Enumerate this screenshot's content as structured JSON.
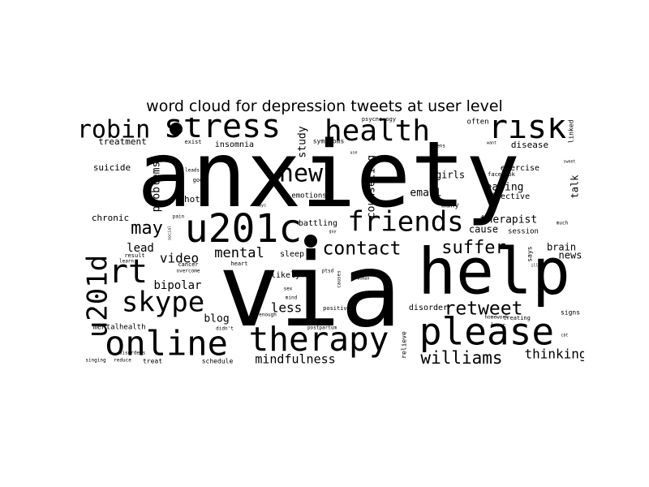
{
  "chart_data": {
    "type": "wordcloud",
    "title": "word cloud for depression tweets at user level",
    "words": [
      {
        "text": "anxiety",
        "weight": 100
      },
      {
        "text": "via",
        "weight": 96
      },
      {
        "text": "help",
        "weight": 66
      },
      {
        "text": "u201c",
        "weight": 46
      },
      {
        "text": "please",
        "weight": 44
      },
      {
        "text": "online",
        "weight": 39
      },
      {
        "text": "therapy",
        "weight": 39
      },
      {
        "text": "rt",
        "weight": 36
      },
      {
        "text": "stress",
        "weight": 34
      },
      {
        "text": "risk",
        "weight": 33
      },
      {
        "text": "health",
        "weight": 32
      },
      {
        "text": "friends",
        "weight": 32
      },
      {
        "text": "u201d",
        "weight": 31
      },
      {
        "text": "skype",
        "weight": 30
      },
      {
        "text": "robin",
        "weight": 27
      },
      {
        "text": "new",
        "weight": 26
      },
      {
        "text": "contact",
        "weight": 22
      },
      {
        "text": "retweet",
        "weight": 21
      },
      {
        "text": "suffer",
        "weight": 20
      },
      {
        "text": "williams",
        "weight": 20
      },
      {
        "text": "may",
        "weight": 19
      },
      {
        "text": "thinking",
        "weight": 16
      },
      {
        "text": "mental",
        "weight": 16
      },
      {
        "text": "video",
        "weight": 15
      },
      {
        "text": "mindfulness",
        "weight": 14
      },
      {
        "text": "less",
        "weight": 14
      },
      {
        "text": "lead",
        "weight": 13
      },
      {
        "text": "bipolar",
        "weight": 13
      },
      {
        "text": "blog",
        "weight": 12
      },
      {
        "text": "problems",
        "weight": 12
      },
      {
        "text": "counseling",
        "weight": 12
      },
      {
        "text": "email",
        "weight": 12
      },
      {
        "text": "eating",
        "weight": 12
      },
      {
        "text": "therapist",
        "weight": 12
      },
      {
        "text": "study",
        "weight": 12
      },
      {
        "text": "news",
        "weight": 11
      },
      {
        "text": "brain",
        "weight": 11
      },
      {
        "text": "talk",
        "weight": 11
      },
      {
        "text": "girls",
        "weight": 11
      },
      {
        "text": "cause",
        "weight": 11
      },
      {
        "text": "suicide",
        "weight": 10
      },
      {
        "text": "treatment",
        "weight": 10
      },
      {
        "text": "chronic",
        "weight": 10
      },
      {
        "text": "photo",
        "weight": 10
      },
      {
        "text": "battling",
        "weight": 10
      },
      {
        "text": "likely",
        "weight": 10
      },
      {
        "text": "sleep",
        "weight": 10
      },
      {
        "text": "disorder",
        "weight": 10
      },
      {
        "text": "exercise",
        "weight": 10
      },
      {
        "text": "effective",
        "weight": 10
      },
      {
        "text": "insomnia",
        "weight": 10
      },
      {
        "text": "disease",
        "weight": 10
      },
      {
        "text": "emotions",
        "weight": 9
      },
      {
        "text": "mentalhealth",
        "weight": 9
      },
      {
        "text": "often",
        "weight": 9
      },
      {
        "text": "many",
        "weight": 9
      },
      {
        "text": "session",
        "weight": 9
      },
      {
        "text": "signs",
        "weight": 8
      },
      {
        "text": "linked",
        "weight": 8
      },
      {
        "text": "symptoms",
        "weight": 8
      },
      {
        "text": "schedule",
        "weight": 8
      },
      {
        "text": "treat",
        "weight": 8
      },
      {
        "text": "relieve",
        "weight": 8
      },
      {
        "text": "says",
        "weight": 8
      },
      {
        "text": "exist",
        "weight": 8
      },
      {
        "text": "facebook",
        "weight": 7
      },
      {
        "text": "psychology",
        "weight": 7
      },
      {
        "text": "heart",
        "weight": 7
      },
      {
        "text": "positive",
        "weight": 7
      },
      {
        "text": "good",
        "weight": 7
      },
      {
        "text": "leads",
        "weight": 7
      },
      {
        "text": "result",
        "weight": 7
      },
      {
        "text": "learn",
        "weight": 6
      },
      {
        "text": "enough",
        "weight": 7
      },
      {
        "text": "mind",
        "weight": 7
      },
      {
        "text": "sex",
        "weight": 7
      },
      {
        "text": "disorders",
        "weight": 7
      },
      {
        "text": "singing",
        "weight": 7
      },
      {
        "text": "reduce",
        "weight": 7
      },
      {
        "text": "postpartum",
        "weight": 6
      },
      {
        "text": "homework",
        "weight": 6
      },
      {
        "text": "treating",
        "weight": 7
      },
      {
        "text": "lower",
        "weight": 6
      },
      {
        "text": "much",
        "weight": 6
      },
      {
        "text": "ptsd",
        "weight": 6
      },
      {
        "text": "causes",
        "weight": 6
      },
      {
        "text": "pain",
        "weight": 6
      },
      {
        "text": "cancer",
        "weight": 7
      },
      {
        "text": "overcome",
        "weight": 6
      },
      {
        "text": "didn't",
        "weight": 6
      },
      {
        "text": "teens",
        "weight": 6
      },
      {
        "text": "ways",
        "weight": 5
      },
      {
        "text": "social",
        "weight": 5
      },
      {
        "text": "guy",
        "weight": 5
      },
      {
        "text": "cbt",
        "weight": 5
      },
      {
        "text": "use",
        "weight": 5
      },
      {
        "text": "want",
        "weight": 5
      },
      {
        "text": "ill",
        "weight": 5
      },
      {
        "text": "sweet",
        "weight": 5
      },
      {
        "text": "woman",
        "weight": 5
      }
    ]
  }
}
